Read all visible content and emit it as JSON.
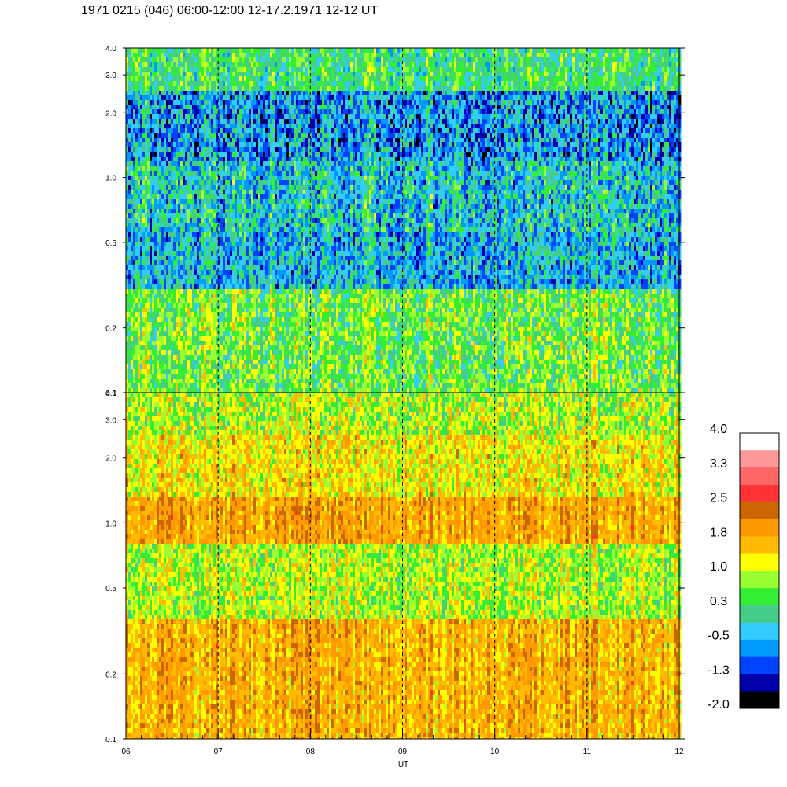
{
  "title": "1971 0215 (046) 06:00-12:00 12-17.2.1971  12-12 UT",
  "chart_data": {
    "type": "heatmap",
    "panels": [
      {
        "name": "",
        "y_scale": "log",
        "ylim": [
          0.1,
          4.0
        ],
        "y_ticks": [
          0.1,
          0.2,
          0.5,
          1.0,
          2.0,
          3.0,
          4.0
        ],
        "y_tick_labels": [
          "0.1",
          "0.2",
          "0.5",
          "1.0",
          "2.0",
          "3.0",
          "4.0"
        ],
        "bands": [
          {
            "y": [
              2.5,
              4.0
            ],
            "level": 0.3,
            "var": 0.6
          },
          {
            "y": [
              1.2,
              2.5
            ],
            "level": -0.6,
            "var": 0.9
          },
          {
            "y": [
              0.55,
              1.2
            ],
            "level": -0.2,
            "var": 0.9
          },
          {
            "y": [
              0.3,
              0.55
            ],
            "level": -0.4,
            "var": 0.8
          },
          {
            "y": [
              0.1,
              0.3
            ],
            "level": 0.6,
            "var": 0.7
          }
        ]
      },
      {
        "name": "",
        "y_scale": "log",
        "ylim": [
          0.1,
          4.0
        ],
        "y_ticks": [
          0.1,
          0.2,
          0.5,
          1.0,
          2.0,
          3.0,
          4.0
        ],
        "y_tick_labels": [
          "0.1",
          "0.2",
          "0.5",
          "1.0",
          "2.0",
          "3.0",
          "4.0"
        ],
        "bands": [
          {
            "y": [
              2.6,
              4.0
            ],
            "level": 0.9,
            "var": 0.7
          },
          {
            "y": [
              1.3,
              2.6
            ],
            "level": 1.3,
            "var": 0.6
          },
          {
            "y": [
              0.8,
              1.3
            ],
            "level": 1.8,
            "var": 0.4
          },
          {
            "y": [
              0.35,
              0.8
            ],
            "level": 0.9,
            "var": 0.6
          },
          {
            "y": [
              0.1,
              0.35
            ],
            "level": 1.7,
            "var": 0.45
          }
        ]
      }
    ],
    "x_range": [
      6,
      12
    ],
    "x_ticks": [
      6,
      7,
      8,
      9,
      10,
      11,
      12
    ],
    "x_tick_labels": [
      "06",
      "07",
      "08",
      "09",
      "10",
      "11",
      "12"
    ],
    "xlabel": "UT",
    "dashed_gridlines_x": [
      7,
      8,
      9,
      10,
      11
    ],
    "colorbar": {
      "range": [
        -2.0,
        4.0
      ],
      "labels": [
        "4.0",
        "3.3",
        "2.5",
        "1.8",
        "1.0",
        "0.3",
        "-0.5",
        "-1.3",
        "-2.0"
      ],
      "colors": [
        "#000000",
        "#0000aa",
        "#0044ff",
        "#0099ff",
        "#33ccff",
        "#44cc88",
        "#33ee33",
        "#99ff33",
        "#ffff00",
        "#ffbb00",
        "#ff9900",
        "#cc6600",
        "#ff3333",
        "#ff6666",
        "#ff9999",
        "#ffffff"
      ]
    }
  }
}
